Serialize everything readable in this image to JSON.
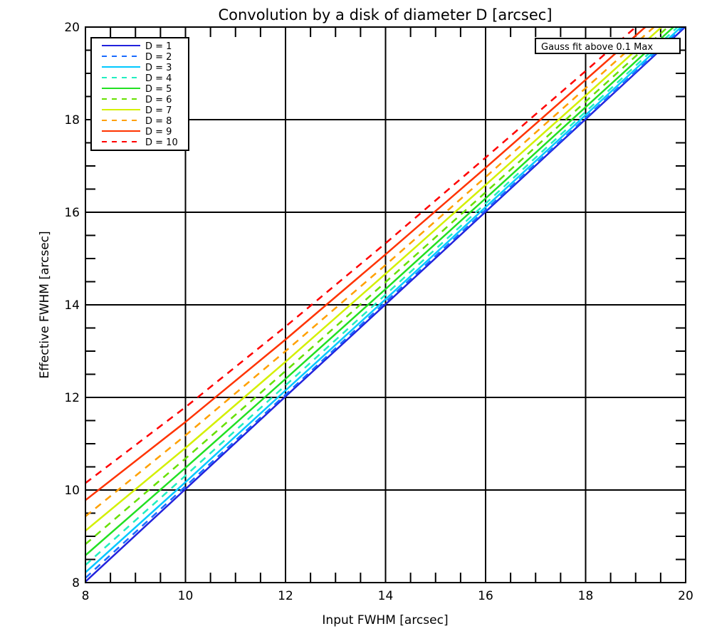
{
  "chart_data": {
    "type": "line",
    "title": "Convolution by a disk of diameter D [arcsec]",
    "xlabel": "Input FWHM [arcsec]",
    "ylabel": "Effective FWHM [arcsec]",
    "xlim": [
      8,
      20
    ],
    "ylim": [
      8,
      20
    ],
    "xticks": [
      "8",
      "10",
      "12",
      "14",
      "16",
      "18",
      "20"
    ],
    "yticks": [
      "8",
      "10",
      "12",
      "14",
      "16",
      "18",
      "20"
    ],
    "grid": true,
    "legend_position": "top-left",
    "annotation": "Gauss fit above 0.1 Max",
    "x": [
      8,
      10,
      12,
      14,
      16,
      18,
      20
    ],
    "series": [
      {
        "name": "D = 1",
        "color": "#2222dd",
        "dash": false,
        "values": [
          8.02,
          10.02,
          12.02,
          14.01,
          16.01,
          18.01,
          20.01
        ]
      },
      {
        "name": "D = 2",
        "color": "#1a6cff",
        "dash": true,
        "values": [
          8.1,
          10.08,
          12.06,
          14.06,
          16.05,
          18.04,
          20.04
        ]
      },
      {
        "name": "D = 3",
        "color": "#00c8ff",
        "dash": false,
        "values": [
          8.22,
          10.17,
          12.15,
          14.12,
          16.11,
          18.1,
          20.09
        ]
      },
      {
        "name": "D = 4",
        "color": "#20eec0",
        "dash": true,
        "values": [
          8.38,
          10.31,
          12.26,
          14.22,
          16.19,
          18.17,
          20.16
        ]
      },
      {
        "name": "D = 5",
        "color": "#22e022",
        "dash": false,
        "values": [
          8.59,
          10.48,
          12.4,
          14.34,
          16.3,
          18.27,
          20.24
        ]
      },
      {
        "name": "D = 6",
        "color": "#66e000",
        "dash": true,
        "values": [
          8.83,
          10.68,
          12.57,
          14.49,
          16.43,
          18.39,
          20.35
        ]
      },
      {
        "name": "D = 7",
        "color": "#d4f000",
        "dash": false,
        "values": [
          9.12,
          10.91,
          12.77,
          14.67,
          16.59,
          18.52,
          20.47
        ]
      },
      {
        "name": "D = 8",
        "color": "#ffa000",
        "dash": true,
        "values": [
          9.43,
          11.18,
          13.0,
          14.86,
          16.76,
          18.68,
          20.61
        ]
      },
      {
        "name": "D = 9",
        "color": "#ff3300",
        "dash": false,
        "values": [
          9.78,
          11.47,
          13.25,
          15.09,
          16.96,
          18.86,
          20.77
        ]
      },
      {
        "name": "D = 10",
        "color": "#ff0000",
        "dash": true,
        "values": [
          10.15,
          11.79,
          13.53,
          15.33,
          17.18,
          19.05,
          20.95
        ]
      }
    ]
  }
}
